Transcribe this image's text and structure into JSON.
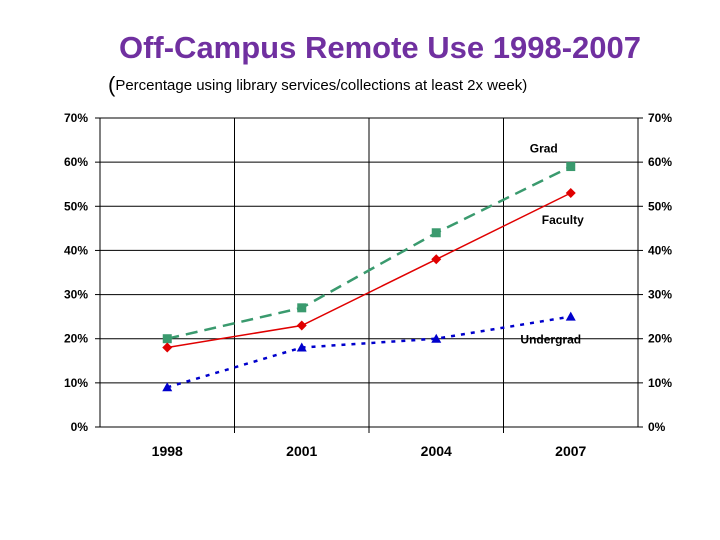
{
  "chart_data": {
    "type": "line",
    "title": "Off-Campus Remote Use 1998-2007",
    "subtitle": "Percentage using library services/collections at least 2x week",
    "categories": [
      "1998",
      "2001",
      "2004",
      "2007"
    ],
    "ylim": [
      0,
      70
    ],
    "yticks": [
      "0%",
      "10%",
      "20%",
      "30%",
      "40%",
      "50%",
      "60%",
      "70%"
    ],
    "grid": true,
    "series": [
      {
        "name": "Grad",
        "values": [
          20,
          27,
          44,
          59
        ],
        "color": "#3a9a6e",
        "marker": "square",
        "dash": "long-dash"
      },
      {
        "name": "Faculty",
        "values": [
          18,
          23,
          38,
          53
        ],
        "color": "#e00000",
        "marker": "diamond",
        "dash": "solid"
      },
      {
        "name": "Undergrad",
        "values": [
          9,
          18,
          20,
          25
        ],
        "color": "#0000cc",
        "marker": "triangle",
        "dash": "dotted"
      }
    ]
  }
}
